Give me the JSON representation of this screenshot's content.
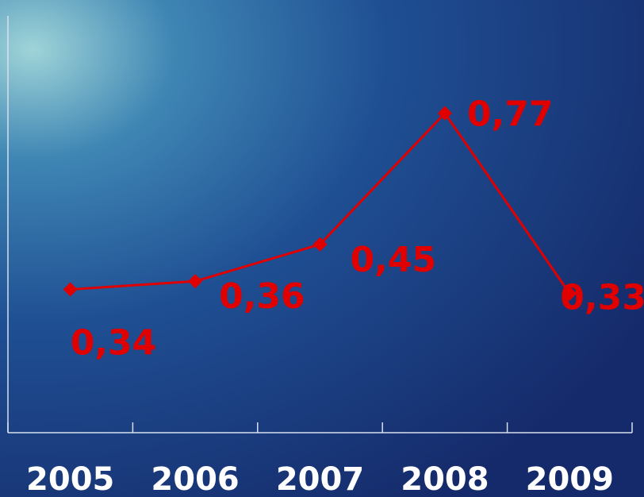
{
  "chart_data": {
    "type": "line",
    "categories": [
      "2005",
      "2006",
      "2007",
      "2008",
      "2009"
    ],
    "series": [
      {
        "color": "#e00000",
        "values": [
          0.34,
          0.36,
          0.45,
          0.77,
          0.33
        ],
        "value_labels": [
          "0,34",
          "0,36",
          "0,45",
          "0,77",
          "0,33"
        ]
      }
    ],
    "ylim": [
      0,
      1
    ]
  }
}
